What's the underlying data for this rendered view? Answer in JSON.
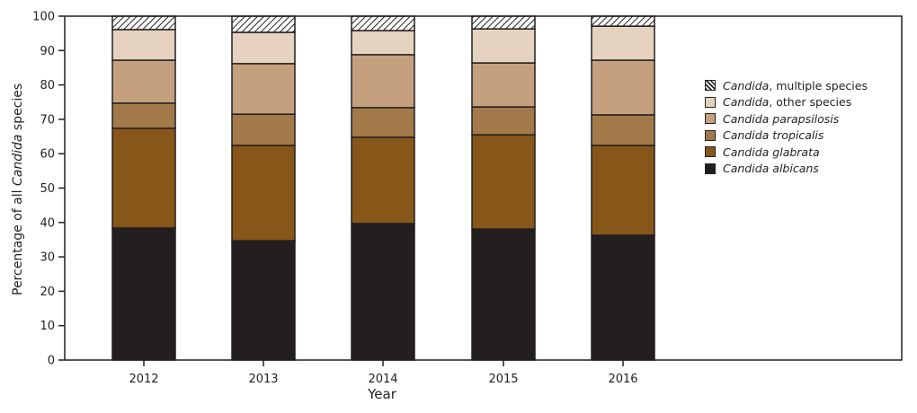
{
  "chart_data": {
    "type": "bar",
    "stacked": true,
    "title": "",
    "xlabel": "Year",
    "ylabel_prefix": "Percentage of all ",
    "ylabel_italic": "Candida",
    "ylabel_suffix": " species",
    "ylim": [
      0,
      100
    ],
    "yticks": [
      0,
      10,
      20,
      30,
      40,
      50,
      60,
      70,
      80,
      90,
      100
    ],
    "categories": [
      "2012",
      "2013",
      "2014",
      "2015",
      "2016"
    ],
    "series": [
      {
        "name": "Candida albicans",
        "italic": "Candida albicans",
        "plain": "",
        "color": "#231f20",
        "values": [
          38.4,
          34.7,
          39.7,
          38.1,
          36.3
        ]
      },
      {
        "name": "Candida glabrata",
        "italic": "Candida glabrata",
        "plain": "",
        "color": "#875619",
        "values": [
          29.0,
          27.7,
          25.1,
          27.4,
          26.1
        ]
      },
      {
        "name": "Candida tropicalis",
        "italic": "Candida tropicalis",
        "plain": "",
        "color": "#a27a4a",
        "values": [
          7.3,
          9.1,
          8.6,
          8.1,
          8.9
        ]
      },
      {
        "name": "Candida parapsilosis",
        "italic": "Candida parapsilosis",
        "plain": "",
        "color": "#c4a07f",
        "values": [
          12.5,
          14.7,
          15.4,
          12.8,
          15.9
        ]
      },
      {
        "name": "Candida, other species",
        "italic": "Candida",
        "plain": ", other species",
        "color": "#e5d3bf",
        "values": [
          8.9,
          9.1,
          7.0,
          9.9,
          9.9
        ]
      },
      {
        "name": "Candida, multiple species",
        "italic": "Candida",
        "plain": ", multiple species",
        "color": "hatch",
        "values": [
          3.9,
          4.7,
          4.2,
          3.7,
          2.9
        ]
      }
    ],
    "legend_position": "right",
    "grid": false
  }
}
